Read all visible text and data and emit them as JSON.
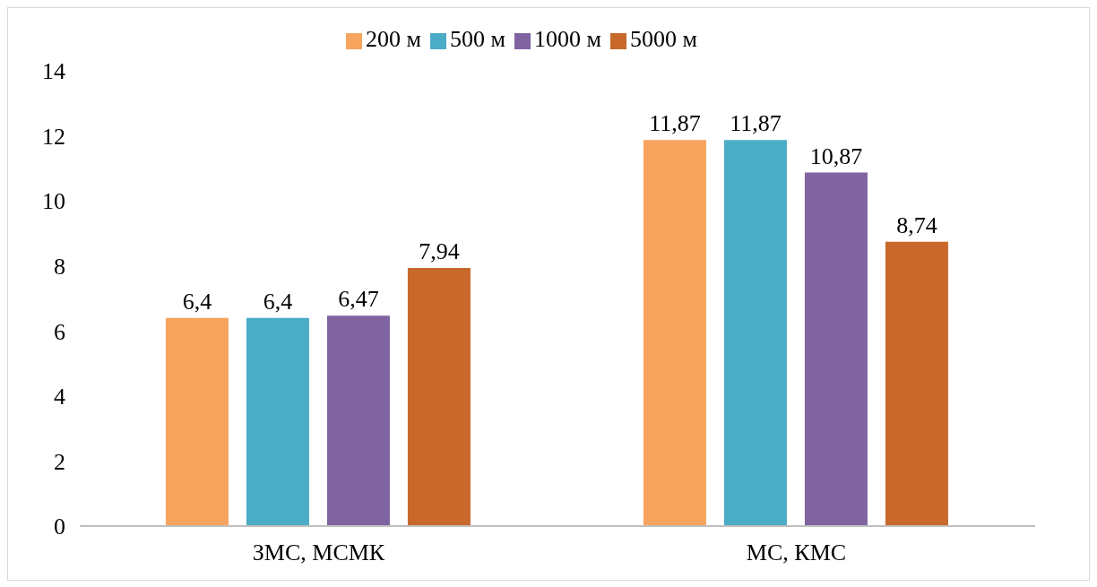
{
  "chart_data": {
    "type": "bar",
    "categories": [
      "ЗМС, МСМК",
      "МС, КМС"
    ],
    "series": [
      {
        "name": "200 м",
        "color": "#f7a45e",
        "values": [
          6.4,
          11.87
        ],
        "value_labels": [
          "6,4",
          "11,87"
        ]
      },
      {
        "name": "500 м",
        "color": "#4bacc6",
        "values": [
          6.4,
          11.87
        ],
        "value_labels": [
          "6,4",
          "11,87"
        ]
      },
      {
        "name": "1000 м",
        "color": "#8064a2",
        "values": [
          6.47,
          10.87
        ],
        "value_labels": [
          "6,47",
          "10,87"
        ]
      },
      {
        "name": "5000 м",
        "color": "#c8692b",
        "values": [
          7.94,
          8.74
        ],
        "value_labels": [
          "7,94",
          "8,74"
        ]
      }
    ],
    "ylim": [
      0,
      14
    ],
    "yticks": [
      0,
      2,
      4,
      6,
      8,
      10,
      12,
      14
    ],
    "grid": false,
    "legend": "top"
  }
}
